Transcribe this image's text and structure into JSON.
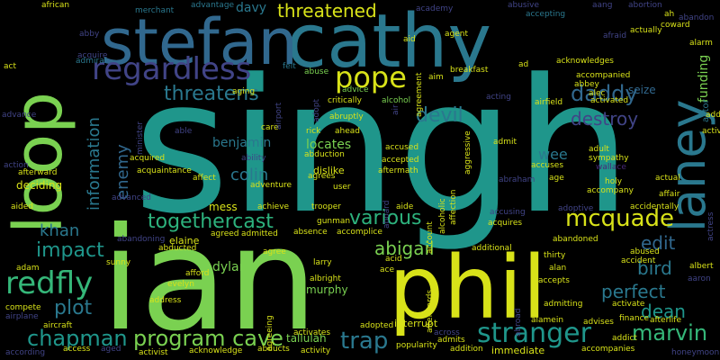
{
  "words": {
    "singh": "singh",
    "ian": "ian",
    "cathy": "cathy",
    "stefan": "stefan",
    "phil": "phil",
    "loop": "loop",
    "laney": "laney",
    "regardless": "regardless",
    "pope": "pope",
    "threatens": "threatens",
    "devil": "devil",
    "daddy": "daddy",
    "destroy": "destroy",
    "threatened": "threatened",
    "mcquade": "mcquade",
    "various": "various",
    "togethercast": "togethercast",
    "information": "information",
    "enemy": "enemy",
    "khan": "khan",
    "impact": "impact",
    "redfly": "redfly",
    "plot": "plot",
    "chapman": "chapman",
    "program_cave": "program cave",
    "trap": "trap",
    "stranger": "stranger",
    "marvin": "marvin",
    "dean": "dean",
    "perfect": "perfect",
    "bird": "bird",
    "edit": "edit",
    "abigail": "abigail",
    "funding": "funding",
    "actor": "actor",
    "seize": "seize",
    "wee": "wee",
    "benjamin": "benjamin",
    "colin": "colin",
    "locates": "locates",
    "dylan": "dylan",
    "murphy": "murphy",
    "tallulah": "tallulah",
    "davy": "davy",
    "african": "african",
    "merchant": "merchant",
    "advantage": "advantage",
    "academy": "academy",
    "abusive": "abusive",
    "aang": "aang",
    "abortion": "abortion",
    "accepting": "accepting",
    "ah": "ah",
    "abandon": "abandon",
    "coward": "coward",
    "alarm": "alarm",
    "actually": "actually",
    "afraid": "afraid",
    "aid": "aid",
    "agent": "agent",
    "ad": "ad",
    "acknowledges": "acknowledges",
    "abby": "abby",
    "acquire": "acquire",
    "admiral": "admiral",
    "act": "act",
    "felt": "felt",
    "abuse": "abuse",
    "breakfast": "breakfast",
    "aim": "aim",
    "agreement": "agreement",
    "accompanied": "accompanied",
    "abbey": "abbey",
    "alec": "alec",
    "activated": "activated",
    "aging": "aging",
    "airport": "airport",
    "adopt": "adopt",
    "advice": "advice",
    "air": "air",
    "alcohol": "alcohol",
    "critically": "critically",
    "acting": "acting",
    "airfield": "airfield",
    "minister": "minister",
    "able": "able",
    "abruptly": "abruptly",
    "care": "care",
    "rick": "rick",
    "ahead": "ahead",
    "ability": "ability",
    "abduction": "abduction",
    "accused": "accused",
    "admit": "admit",
    "adult": "adult",
    "sympathy": "sympathy",
    "wallace": "wallace",
    "accuses": "accuses",
    "holy": "holy",
    "accompany": "accompany",
    "affair": "affair",
    "acquired": "acquired",
    "acquaintance": "acquaintance",
    "affect": "affect",
    "dislike": "dislike",
    "agrees": "agrees",
    "aftermath": "aftermath",
    "abraham": "abraham",
    "age": "age",
    "actual": "actual",
    "action": "action",
    "afterward": "afterward",
    "deciding": "deciding",
    "advanced": "advanced",
    "adventure": "adventure",
    "user": "user",
    "aided": "aided",
    "mess": "mess",
    "achieve": "achieve",
    "trooper": "trooper",
    "aide": "aide",
    "accusing": "accusing",
    "acquires": "acquires",
    "adoptive": "adoptive",
    "accidentally": "accidentally",
    "actress": "actress",
    "elaine": "elaine",
    "abandoning": "abandoning",
    "agreed": "agreed",
    "admitted": "admitted",
    "absence": "absence",
    "accomplice": "accomplice",
    "gunman": "gunman",
    "additional": "additional",
    "abandoned": "abandoned",
    "abused": "abused",
    "accident": "accident",
    "albert": "albert",
    "adam": "adam",
    "sunny": "sunny",
    "abducted": "abducted",
    "agree": "agree",
    "larry": "larry",
    "thirty": "thirty",
    "alan": "alan",
    "accepts": "accepts",
    "aaron": "aaron",
    "afford": "afford",
    "evelyn": "evelyn",
    "albright": "albright",
    "acid": "acid",
    "ace": "ace",
    "address": "address",
    "admitting": "admitting",
    "compete": "compete",
    "airplane": "airplane",
    "aircraft": "aircraft",
    "agreeing": "agreeing",
    "adopted": "adopted",
    "interrupt": "interrupt",
    "alamein": "alamein",
    "advises": "advises",
    "finance": "finance",
    "afterlife": "afterlife",
    "activates": "activates",
    "across": "across",
    "admits": "admits",
    "addict": "addict",
    "according": "according",
    "access": "access",
    "aged": "aged",
    "activist": "activist",
    "acknowledge": "acknowledge",
    "abducts": "abducts",
    "activity": "activity",
    "popularity": "popularity",
    "addition": "addition",
    "immediate": "immediate",
    "accompanies": "accompanies",
    "honeymoon": "honeymoon",
    "account": "account",
    "alcoholic": "alcoholic",
    "affection": "affection",
    "afterwards": "afterwards",
    "aggressive": "aggressive",
    "accepted": "accepted",
    "aboard": "aboard",
    "abroad": "abroad",
    "activate": "activate",
    "advance": "advance",
    "active": "active",
    "add": "add"
  },
  "colors": {
    "yellow": "#d8e219",
    "lime": "#7ad151",
    "green": "#22a884",
    "teal": "#1f968b",
    "blue": "#2a788e",
    "steel": "#31688e",
    "indigo": "#414487",
    "purple": "#482878",
    "dark": "#440154",
    "mint": "#35b779",
    "aqua": "#2db27d"
  }
}
